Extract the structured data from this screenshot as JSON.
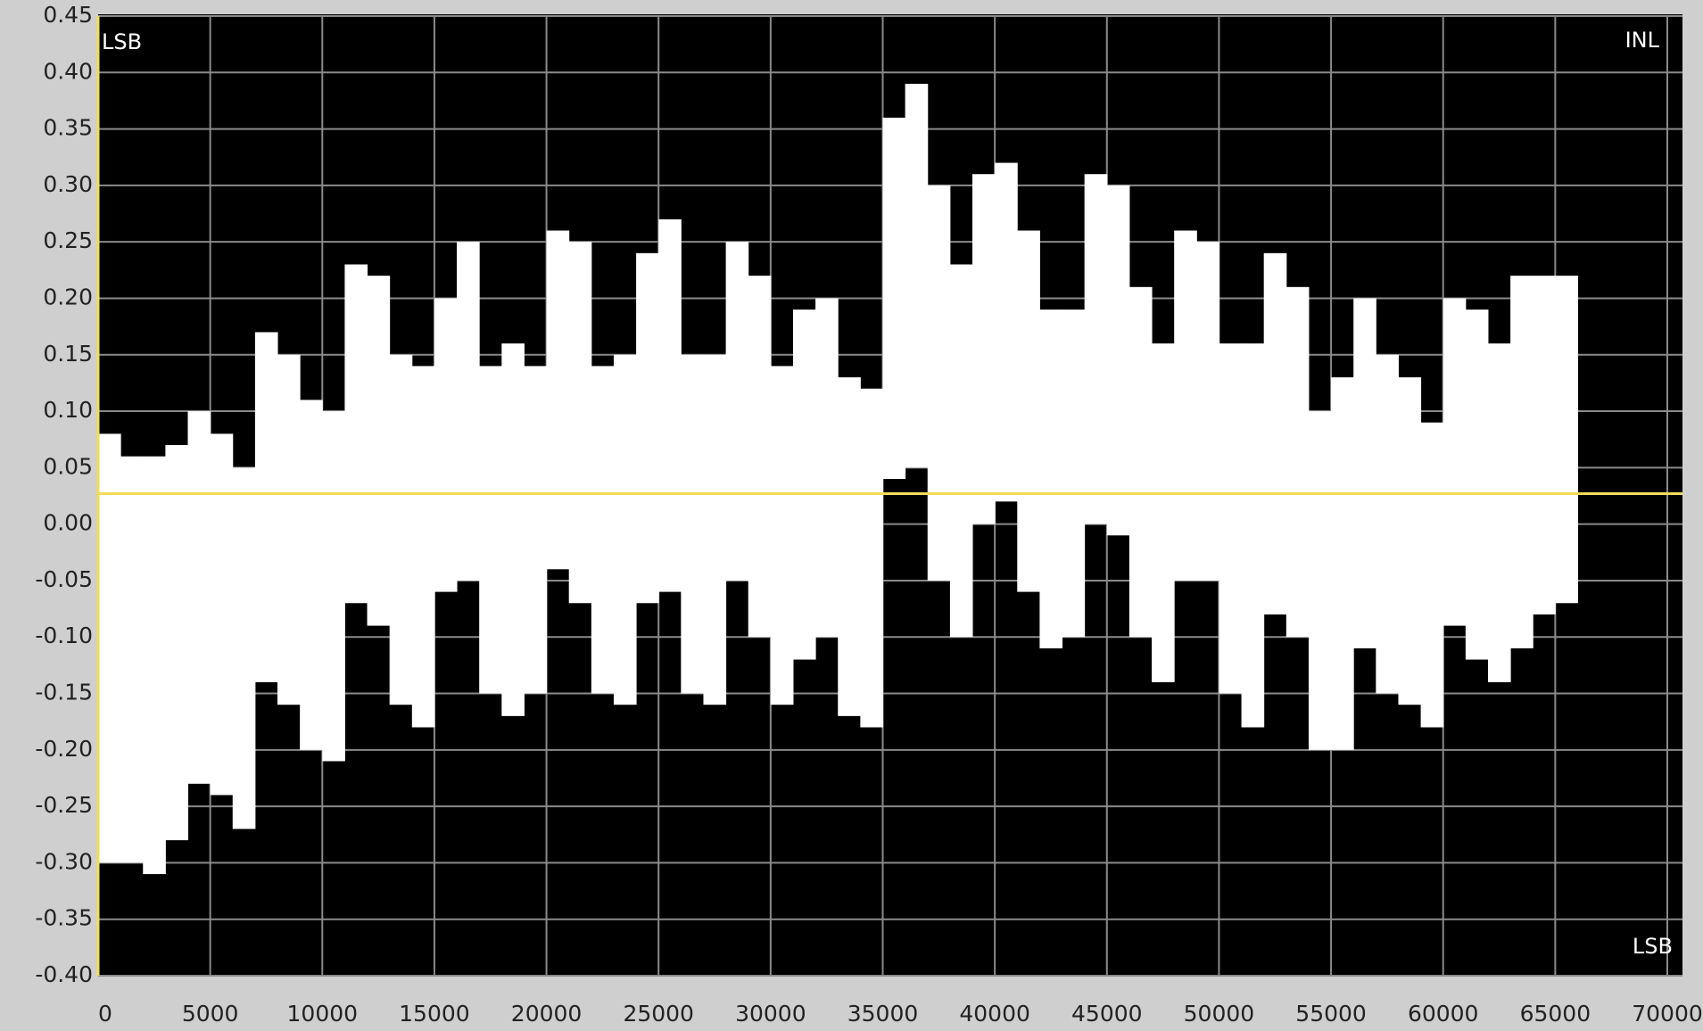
{
  "chart_data": {
    "type": "band",
    "labels": {
      "top_left": "LSB",
      "top_right": "INL",
      "bottom_right": "LSB"
    },
    "x": [
      0,
      1000,
      2000,
      3000,
      4000,
      5000,
      6000,
      7000,
      8000,
      9000,
      10000,
      11000,
      12000,
      13000,
      14000,
      15000,
      16000,
      17000,
      18000,
      19000,
      20000,
      21000,
      22000,
      23000,
      24000,
      25000,
      26000,
      27000,
      28000,
      29000,
      30000,
      31000,
      32000,
      33000,
      34000,
      35000,
      36000,
      37000,
      38000,
      39000,
      40000,
      41000,
      42000,
      43000,
      44000,
      45000,
      46000,
      47000,
      48000,
      49000,
      50000,
      51000,
      52000,
      53000,
      54000,
      55000,
      56000,
      57000,
      58000,
      59000,
      60000,
      61000,
      62000,
      63000,
      64000,
      65000
    ],
    "upper": [
      0.08,
      0.06,
      0.06,
      0.07,
      0.1,
      0.08,
      0.05,
      0.17,
      0.15,
      0.11,
      0.1,
      0.23,
      0.22,
      0.15,
      0.14,
      0.2,
      0.25,
      0.14,
      0.16,
      0.14,
      0.26,
      0.25,
      0.14,
      0.15,
      0.24,
      0.27,
      0.15,
      0.15,
      0.25,
      0.22,
      0.14,
      0.19,
      0.2,
      0.13,
      0.12,
      0.36,
      0.39,
      0.3,
      0.23,
      0.31,
      0.32,
      0.26,
      0.19,
      0.19,
      0.31,
      0.3,
      0.21,
      0.16,
      0.26,
      0.25,
      0.16,
      0.16,
      0.24,
      0.21,
      0.1,
      0.13,
      0.2,
      0.15,
      0.13,
      0.09,
      0.2,
      0.19,
      0.16,
      0.22,
      0.22,
      0.22
    ],
    "lower": [
      -0.3,
      -0.3,
      -0.31,
      -0.28,
      -0.23,
      -0.24,
      -0.27,
      -0.14,
      -0.16,
      -0.2,
      -0.21,
      -0.07,
      -0.09,
      -0.16,
      -0.18,
      -0.06,
      -0.05,
      -0.15,
      -0.17,
      -0.15,
      -0.04,
      -0.07,
      -0.15,
      -0.16,
      -0.07,
      -0.06,
      -0.15,
      -0.16,
      -0.05,
      -0.1,
      -0.16,
      -0.12,
      -0.1,
      -0.17,
      -0.18,
      0.04,
      0.05,
      -0.05,
      -0.1,
      0.0,
      0.02,
      -0.06,
      -0.11,
      -0.1,
      0.0,
      -0.01,
      -0.1,
      -0.14,
      -0.05,
      -0.05,
      -0.15,
      -0.18,
      -0.08,
      -0.1,
      -0.2,
      -0.2,
      -0.11,
      -0.15,
      -0.16,
      -0.18,
      -0.09,
      -0.12,
      -0.14,
      -0.11,
      -0.08,
      -0.07
    ],
    "band_color": "#ffffff",
    "reference_line": 0.027,
    "reference_color": "#f2dc5a",
    "xlim": [
      0,
      70000
    ],
    "xticks": [
      0,
      5000,
      10000,
      15000,
      20000,
      25000,
      30000,
      35000,
      40000,
      45000,
      50000,
      55000,
      60000,
      65000,
      70000
    ],
    "ylim": [
      -0.4,
      0.45
    ],
    "yticks": [
      {
        "value": 0.45,
        "label": "0.45"
      },
      {
        "value": 0.4,
        "label": "0.40"
      },
      {
        "value": 0.35,
        "label": "0.35"
      },
      {
        "value": 0.3,
        "label": "0.30"
      },
      {
        "value": 0.25,
        "label": "0.25"
      },
      {
        "value": 0.2,
        "label": "0.20"
      },
      {
        "value": 0.15,
        "label": "0.15"
      },
      {
        "value": 0.1,
        "label": "0.10"
      },
      {
        "value": 0.05,
        "label": "0.05"
      },
      {
        "value": 0,
        "label": "0.00"
      },
      {
        "value": -0.05,
        "label": "-0.05"
      },
      {
        "value": -0.1,
        "label": "-0.10"
      },
      {
        "value": -0.15,
        "label": "-0.15"
      },
      {
        "value": -0.2,
        "label": "-0.20"
      },
      {
        "value": -0.25,
        "label": "-0.25"
      },
      {
        "value": -0.3,
        "label": "-0.30"
      },
      {
        "value": -0.35,
        "label": "-0.35"
      },
      {
        "value": -0.4,
        "label": "-0.40"
      }
    ],
    "grid": true
  }
}
